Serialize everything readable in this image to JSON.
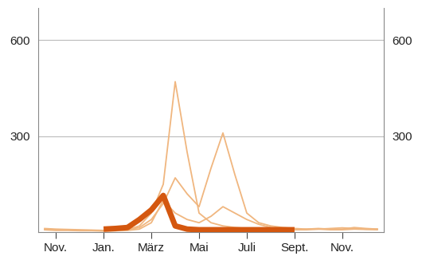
{
  "chart_data": {
    "type": "line",
    "categories": [
      null,
      "Nov.",
      null,
      null,
      null,
      "Jan.",
      null,
      null,
      null,
      "März",
      null,
      null,
      null,
      "Mai",
      null,
      null,
      null,
      "Juli",
      null,
      null,
      null,
      "Sept.",
      null,
      null,
      null,
      "Nov.",
      null,
      null,
      null
    ],
    "series": [
      {
        "color": "#f0b67f",
        "line_style": "solid",
        "values": [
          10,
          8,
          8,
          6,
          6,
          5,
          5,
          8,
          20,
          60,
          150,
          470,
          250,
          60,
          30,
          20,
          15,
          12,
          10,
          10,
          10,
          8,
          10,
          12,
          10,
          10,
          15,
          12,
          10
        ]
      },
      {
        "color": "#f0b67f",
        "line_style": "solid",
        "values": [
          12,
          10,
          9,
          8,
          7,
          6,
          6,
          8,
          15,
          40,
          90,
          170,
          120,
          80,
          200,
          310,
          180,
          60,
          30,
          20,
          15,
          12,
          10,
          10,
          12,
          14,
          12,
          10,
          10
        ]
      },
      {
        "color": "#f0b67f",
        "line_style": "solid",
        "values": [
          8,
          6,
          6,
          5,
          5,
          4,
          5,
          6,
          10,
          30,
          100,
          60,
          40,
          30,
          50,
          80,
          60,
          40,
          25,
          15,
          10,
          8,
          8,
          10,
          8,
          8,
          10,
          9,
          8
        ]
      },
      {
        "color": "#d4570f",
        "line_style": "solid",
        "values": [
          null,
          null,
          null,
          null,
          null,
          10,
          12,
          15,
          40,
          70,
          115,
          20,
          10,
          8,
          8,
          8,
          8,
          8,
          8,
          8,
          8,
          8,
          null,
          null,
          null,
          null,
          null,
          null,
          null
        ]
      }
    ],
    "ylim": [
      0,
      700
    ],
    "yticks": [
      300,
      600
    ],
    "grid": true
  }
}
